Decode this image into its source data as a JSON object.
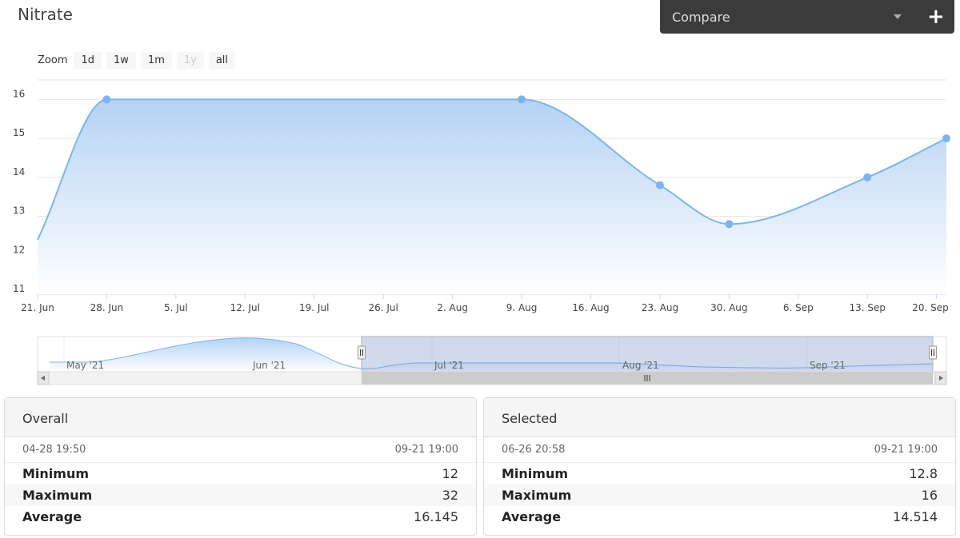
{
  "page": {
    "title": "Nitrate"
  },
  "compare": {
    "label": "Compare",
    "plus": "+"
  },
  "zoom": {
    "label": "Zoom",
    "buttons": [
      {
        "label": "1d",
        "enabled": true
      },
      {
        "label": "1w",
        "enabled": true
      },
      {
        "label": "1m",
        "enabled": true
      },
      {
        "label": "1y",
        "enabled": false
      },
      {
        "label": "all",
        "enabled": true
      }
    ]
  },
  "chart_data": {
    "type": "area",
    "title": "",
    "xlabel": "",
    "ylabel": "",
    "ylim": [
      11,
      16.5
    ],
    "y_ticks": [
      11,
      12,
      13,
      14,
      15,
      16
    ],
    "x_tick_labels": [
      "21. Jun",
      "28. Jun",
      "5. Jul",
      "12. Jul",
      "19. Jul",
      "26. Jul",
      "2. Aug",
      "9. Aug",
      "16. Aug",
      "23. Aug",
      "30. Aug",
      "6. Sep",
      "13. Sep",
      "20. Sep"
    ],
    "x_range": [
      "2021-06-21",
      "2021-09-21"
    ],
    "grid": true,
    "points": [
      {
        "date": "2021-06-21",
        "value": 12.4,
        "marker": false
      },
      {
        "date": "2021-06-28",
        "value": 16,
        "marker": true
      },
      {
        "date": "2021-08-09",
        "value": 16,
        "marker": true
      },
      {
        "date": "2021-08-23",
        "value": 13.8,
        "marker": true
      },
      {
        "date": "2021-08-30",
        "value": 12.8,
        "marker": true
      },
      {
        "date": "2021-09-13",
        "value": 14,
        "marker": true
      },
      {
        "date": "2021-09-21",
        "value": 15,
        "marker": true
      }
    ],
    "colors": {
      "line": "#7cb5ec",
      "fill_top": "#b4d2f3",
      "fill_bottom": "#ffffff"
    }
  },
  "navigator": {
    "labels": [
      "May '21",
      "Jun '21",
      "Jul '21",
      "Aug '21",
      "Sep '21"
    ],
    "selection_start": "06-26",
    "selection_end": "09-21",
    "selection_fraction": [
      0.363,
      1.0
    ]
  },
  "overall": {
    "title": "Overall",
    "start": "04-28 19:50",
    "end": "09-21 19:00",
    "stats": [
      {
        "label": "Minimum",
        "value": "12"
      },
      {
        "label": "Maximum",
        "value": "32"
      },
      {
        "label": "Average",
        "value": "16.145"
      }
    ]
  },
  "selected": {
    "title": "Selected",
    "start": "06-26 20:58",
    "end": "09-21 19:00",
    "stats": [
      {
        "label": "Minimum",
        "value": "12.8"
      },
      {
        "label": "Maximum",
        "value": "16"
      },
      {
        "label": "Average",
        "value": "14.514"
      }
    ]
  }
}
